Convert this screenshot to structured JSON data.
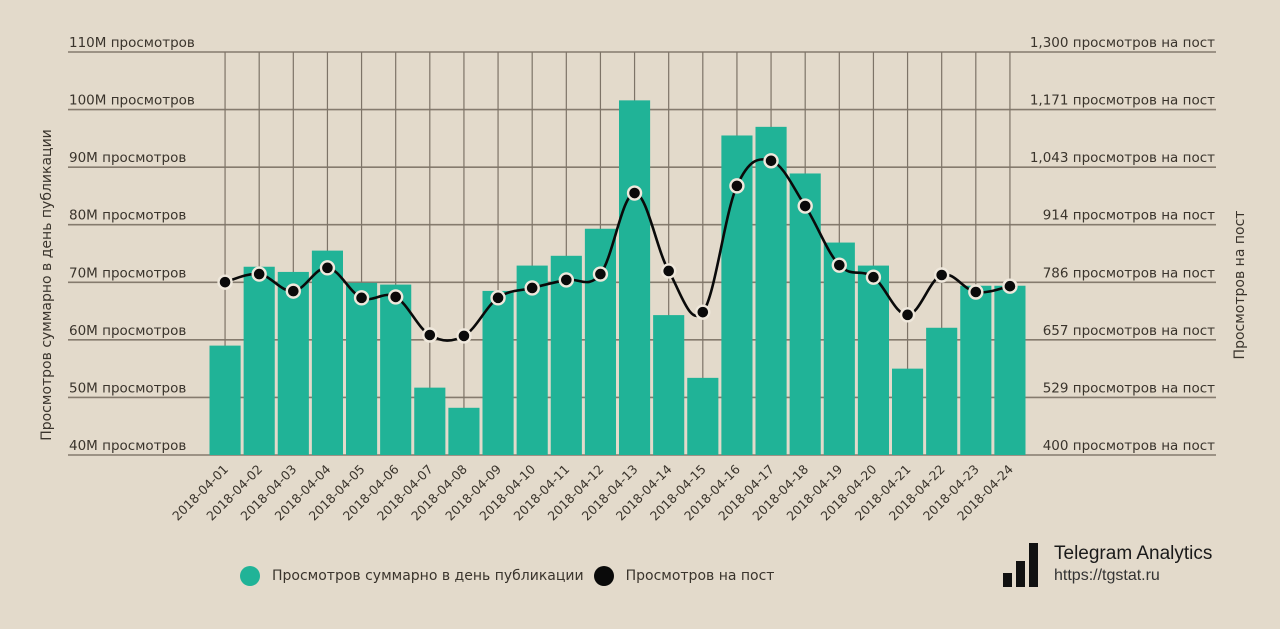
{
  "chart_data": {
    "type": "bar+line",
    "categories": [
      "2018-04-01",
      "2018-04-02",
      "2018-04-03",
      "2018-04-04",
      "2018-04-05",
      "2018-04-06",
      "2018-04-07",
      "2018-04-08",
      "2018-04-09",
      "2018-04-10",
      "2018-04-11",
      "2018-04-12",
      "2018-04-13",
      "2018-04-14",
      "2018-04-15",
      "2018-04-16",
      "2018-04-17",
      "2018-04-18",
      "2018-04-19",
      "2018-04-20",
      "2018-04-21",
      "2018-04-22",
      "2018-04-23",
      "2018-04-24"
    ],
    "series": [
      {
        "name": "Просмотров суммарно в день публикации",
        "type": "bar",
        "axis": "left",
        "unit": "M",
        "color": "#20b397",
        "values": [
          59.0,
          72.7,
          71.8,
          75.5,
          69.9,
          69.6,
          51.7,
          48.2,
          68.5,
          72.9,
          74.6,
          79.3,
          101.6,
          64.3,
          53.4,
          95.5,
          97.0,
          88.9,
          76.9,
          72.9,
          55.0,
          62.1,
          69.4,
          69.4
        ]
      },
      {
        "name": "Просмотров на пост",
        "type": "line",
        "axis": "right",
        "color": "#0a0a0a",
        "values": [
          786,
          804,
          766,
          818,
          751,
          753,
          668,
          666,
          751,
          773,
          791,
          804,
          985,
          811,
          719,
          1001,
          1057,
          956,
          824,
          797,
          713,
          802,
          764,
          777
        ]
      }
    ],
    "left_axis": {
      "title": "Просмотров суммарно в день публикации",
      "ylim": [
        40,
        110
      ],
      "ticks": [
        40,
        50,
        60,
        70,
        80,
        90,
        100,
        110
      ],
      "tick_labels": [
        "40M просмотров",
        "50M просмотров",
        "60M просмотров",
        "70M просмотров",
        "80M просмотров",
        "90M просмотров",
        "100M просмотров",
        "110M просмотров"
      ]
    },
    "right_axis": {
      "title": "Просмотров на пост",
      "ylim": [
        400,
        1300
      ],
      "tick_labels": [
        "400 просмотров на пост",
        "529 просмотров на пост",
        "657 просмотров на пост",
        "786 просмотров на пост",
        "914 просмотров на пост",
        "1,043 просмотров на пост",
        "1,171 просмотров на пост",
        "1,300 просмотров на пост"
      ]
    },
    "grid": true,
    "legend_position": "bottom-left"
  },
  "legend": {
    "items": [
      {
        "label": "Просмотров суммарно в день публикации",
        "color": "#20b397"
      },
      {
        "label": "Просмотров на пост",
        "color": "#0a0a0a"
      }
    ]
  },
  "brand": {
    "name": "Telegram Analytics",
    "url": "https://tgstat.ru",
    "icon": "bar-chart-logo-icon"
  }
}
